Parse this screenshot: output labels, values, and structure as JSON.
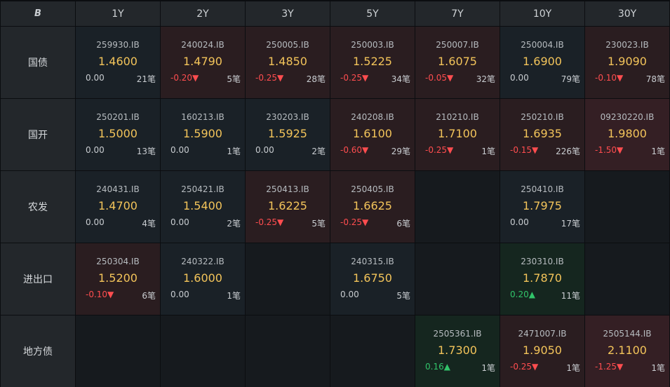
{
  "logo_text": "B",
  "columns": [
    "1Y",
    "2Y",
    "3Y",
    "5Y",
    "7Y",
    "10Y",
    "30Y"
  ],
  "rows": [
    {
      "label": "国债",
      "cells": [
        {
          "code": "259930.IB",
          "price": "1.4600",
          "change": "0.00",
          "dir": "flat",
          "count": "21笔",
          "tone": "neutral"
        },
        {
          "code": "240024.IB",
          "price": "1.4790",
          "change": "-0.20▼",
          "dir": "down",
          "count": "5笔",
          "tone": "red"
        },
        {
          "code": "250005.IB",
          "price": "1.4850",
          "change": "-0.25▼",
          "dir": "down",
          "count": "28笔",
          "tone": "red"
        },
        {
          "code": "250003.IB",
          "price": "1.5225",
          "change": "-0.25▼",
          "dir": "down",
          "count": "34笔",
          "tone": "red"
        },
        {
          "code": "250007.IB",
          "price": "1.6075",
          "change": "-0.05▼",
          "dir": "down",
          "count": "32笔",
          "tone": "red"
        },
        {
          "code": "250004.IB",
          "price": "1.6900",
          "change": "0.00",
          "dir": "flat",
          "count": "79笔",
          "tone": "neutral"
        },
        {
          "code": "230023.IB",
          "price": "1.9090",
          "change": "-0.10▼",
          "dir": "down",
          "count": "78笔",
          "tone": "red"
        }
      ]
    },
    {
      "label": "国开",
      "cells": [
        {
          "code": "250201.IB",
          "price": "1.5000",
          "change": "0.00",
          "dir": "flat",
          "count": "13笔",
          "tone": "neutral"
        },
        {
          "code": "160213.IB",
          "price": "1.5900",
          "change": "0.00",
          "dir": "flat",
          "count": "1笔",
          "tone": "neutral"
        },
        {
          "code": "230203.IB",
          "price": "1.5925",
          "change": "0.00",
          "dir": "flat",
          "count": "2笔",
          "tone": "neutral"
        },
        {
          "code": "240208.IB",
          "price": "1.6100",
          "change": "-0.60▼",
          "dir": "down",
          "count": "29笔",
          "tone": "red"
        },
        {
          "code": "210210.IB",
          "price": "1.7100",
          "change": "-0.25▼",
          "dir": "down",
          "count": "1笔",
          "tone": "red"
        },
        {
          "code": "250210.IB",
          "price": "1.6935",
          "change": "-0.15▼",
          "dir": "down",
          "count": "226笔",
          "tone": "red"
        },
        {
          "code": "09230220.IB",
          "price": "1.9800",
          "change": "-1.50▼",
          "dir": "down",
          "count": "1笔",
          "tone": "red2"
        }
      ]
    },
    {
      "label": "农发",
      "cells": [
        {
          "code": "240431.IB",
          "price": "1.4700",
          "change": "0.00",
          "dir": "flat",
          "count": "4笔",
          "tone": "neutral"
        },
        {
          "code": "250421.IB",
          "price": "1.5400",
          "change": "0.00",
          "dir": "flat",
          "count": "2笔",
          "tone": "neutral"
        },
        {
          "code": "250413.IB",
          "price": "1.6225",
          "change": "-0.25▼",
          "dir": "down",
          "count": "5笔",
          "tone": "red"
        },
        {
          "code": "250405.IB",
          "price": "1.6625",
          "change": "-0.25▼",
          "dir": "down",
          "count": "6笔",
          "tone": "red"
        },
        null,
        {
          "code": "250410.IB",
          "price": "1.7975",
          "change": "0.00",
          "dir": "flat",
          "count": "17笔",
          "tone": "neutral"
        },
        null
      ]
    },
    {
      "label": "进出口",
      "cells": [
        {
          "code": "250304.IB",
          "price": "1.5200",
          "change": "-0.10▼",
          "dir": "down",
          "count": "6笔",
          "tone": "red"
        },
        {
          "code": "240322.IB",
          "price": "1.6000",
          "change": "0.00",
          "dir": "flat",
          "count": "1笔",
          "tone": "neutral"
        },
        null,
        {
          "code": "240315.IB",
          "price": "1.6750",
          "change": "0.00",
          "dir": "flat",
          "count": "5笔",
          "tone": "neutral"
        },
        null,
        {
          "code": "230310.IB",
          "price": "1.7870",
          "change": "0.20▲",
          "dir": "up",
          "count": "11笔",
          "tone": "green"
        },
        null
      ]
    },
    {
      "label": "地方债",
      "cells": [
        null,
        null,
        null,
        null,
        {
          "code": "2505361.IB",
          "price": "1.7300",
          "change": "0.16▲",
          "dir": "up",
          "count": "1笔",
          "tone": "green"
        },
        {
          "code": "2471007.IB",
          "price": "1.9050",
          "change": "-0.25▼",
          "dir": "down",
          "count": "1笔",
          "tone": "red"
        },
        {
          "code": "2505144.IB",
          "price": "2.1100",
          "change": "-1.25▼",
          "dir": "down",
          "count": "1笔",
          "tone": "red2"
        }
      ]
    }
  ]
}
